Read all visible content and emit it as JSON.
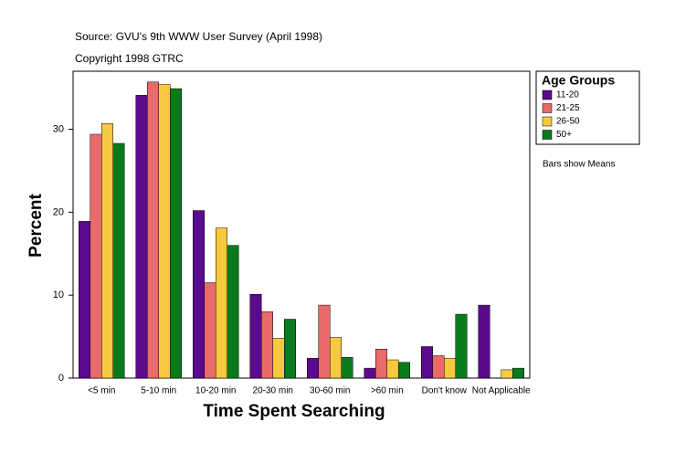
{
  "chart_data": {
    "type": "bar",
    "source": "Source: GVU's 9th WWW User Survey (April 1998)",
    "copyright": "Copyright 1998 GTRC",
    "x_label": "Time Spent Searching",
    "y_label": "Percent",
    "legend_title": "Age Groups",
    "note": "Bars show Means",
    "categories": [
      "<5 min",
      "5-10 min",
      "10-20 min",
      "20-30 min",
      "30-60 min",
      ">60 min",
      "Don't know",
      "Not Applicable"
    ],
    "series": [
      {
        "name": "11-20",
        "color": "#5a0a8c",
        "values": [
          18.9,
          34.1,
          20.2,
          10.1,
          2.4,
          1.2,
          3.8,
          8.8
        ]
      },
      {
        "name": "21-25",
        "color": "#e86a6a",
        "values": [
          29.4,
          35.7,
          11.5,
          8.0,
          8.8,
          3.5,
          2.7,
          null
        ]
      },
      {
        "name": "26-50",
        "color": "#f8c840",
        "values": [
          30.7,
          35.4,
          18.1,
          4.8,
          4.9,
          2.2,
          2.4,
          1.0
        ]
      },
      {
        "name": "50+",
        "color": "#0a7a1e",
        "values": [
          28.3,
          34.9,
          16.0,
          7.1,
          2.5,
          1.9,
          7.7,
          1.2
        ]
      }
    ],
    "ylim": [
      0,
      37
    ],
    "yticks": [
      0,
      10,
      20,
      30
    ],
    "grid": false
  }
}
